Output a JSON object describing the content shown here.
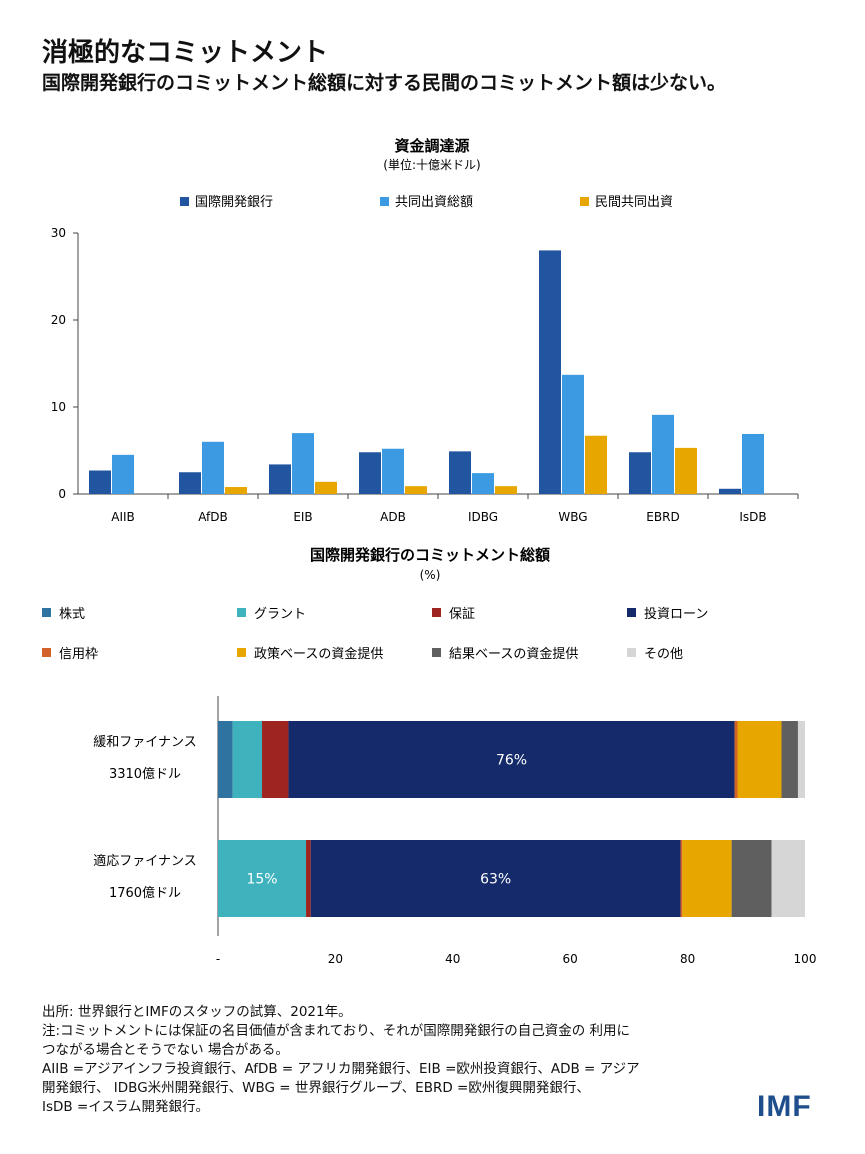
{
  "header": {
    "title": "消極的なコミットメント",
    "subtitle": "国際開発銀行のコミットメント総額に対する民間のコミットメント額は少ない。"
  },
  "colors": {
    "mdb": "#2155a0",
    "cofinance": "#3b9ae1",
    "private": "#e8a700",
    "equity": "#2f73a0",
    "grant": "#3eb3be",
    "guarantee": "#9e2420",
    "loan": "#152a6a",
    "credit_line": "#d2622a",
    "policy": "#e8a700",
    "results": "#5f5f5f",
    "other": "#d6d6d6"
  },
  "chart_data": [
    {
      "type": "bar",
      "title": "資金調達源",
      "subtitle": "(単位:十億米ドル)",
      "categories": [
        "AIIB",
        "AfDB",
        "EIB",
        "ADB",
        "IDBG",
        "WBG",
        "EBRD",
        "IsDB"
      ],
      "series": [
        {
          "name": "国際開発銀行",
          "color_key": "mdb",
          "values": [
            2.7,
            2.5,
            3.4,
            4.8,
            4.9,
            28.0,
            4.8,
            0.6
          ]
        },
        {
          "name": "共同出資総額",
          "color_key": "cofinance",
          "values": [
            4.5,
            6.0,
            7.0,
            5.2,
            2.4,
            13.7,
            9.1,
            6.9
          ]
        },
        {
          "name": "民間共同出資",
          "color_key": "private",
          "values": [
            0.0,
            0.8,
            1.4,
            0.9,
            0.9,
            6.7,
            5.3,
            0.0
          ]
        }
      ],
      "ylim": [
        0,
        30
      ],
      "yticks": [
        0,
        10,
        20,
        30
      ],
      "ytick_labels": [
        "0",
        "10",
        "20",
        "30"
      ],
      "xlabel": "",
      "ylabel": "",
      "legend_position": "top"
    },
    {
      "type": "bar",
      "orientation": "horizontal-stacked",
      "title": "国際開発銀行のコミットメント総額",
      "subtitle": "(%)",
      "legend": [
        {
          "name": "株式",
          "color_key": "equity"
        },
        {
          "name": "グラント",
          "color_key": "grant"
        },
        {
          "name": "保証",
          "color_key": "guarantee"
        },
        {
          "name": "投資ローン",
          "color_key": "loan"
        },
        {
          "name": "信用枠",
          "color_key": "credit_line"
        },
        {
          "name": "政策ベースの資金提供",
          "color_key": "policy"
        },
        {
          "name": "結果ベースの資金提供",
          "color_key": "results"
        },
        {
          "name": "その他",
          "color_key": "other"
        }
      ],
      "rows": [
        {
          "label": "緩和ファイナンス",
          "sublabel": "3310億ドル",
          "segments": [
            {
              "name": "株式",
              "color_key": "equity",
              "value": 2.5,
              "label": ""
            },
            {
              "name": "グラント",
              "color_key": "grant",
              "value": 5.0,
              "label": ""
            },
            {
              "name": "保証",
              "color_key": "guarantee",
              "value": 4.5,
              "label": ""
            },
            {
              "name": "投資ローン",
              "color_key": "loan",
              "value": 76.0,
              "label": "76%"
            },
            {
              "name": "信用枠",
              "color_key": "credit_line",
              "value": 0.5,
              "label": ""
            },
            {
              "name": "政策ベースの資金提供",
              "color_key": "policy",
              "value": 7.5,
              "label": ""
            },
            {
              "name": "結果ベースの資金提供",
              "color_key": "results",
              "value": 2.8,
              "label": ""
            },
            {
              "name": "その他",
              "color_key": "other",
              "value": 1.2,
              "label": ""
            }
          ]
        },
        {
          "label": "適応ファイナンス",
          "sublabel": "1760億ドル",
          "segments": [
            {
              "name": "株式",
              "color_key": "equity",
              "value": 0.0,
              "label": ""
            },
            {
              "name": "グラント",
              "color_key": "grant",
              "value": 15.0,
              "label": "15%"
            },
            {
              "name": "保証",
              "color_key": "guarantee",
              "value": 0.8,
              "label": ""
            },
            {
              "name": "投資ローン",
              "color_key": "loan",
              "value": 63.0,
              "label": "63%"
            },
            {
              "name": "信用枠",
              "color_key": "credit_line",
              "value": 0.3,
              "label": ""
            },
            {
              "name": "政策ベースの資金提供",
              "color_key": "policy",
              "value": 8.4,
              "label": ""
            },
            {
              "name": "結果ベースの資金提供",
              "color_key": "results",
              "value": 6.8,
              "label": ""
            },
            {
              "name": "その他",
              "color_key": "other",
              "value": 5.7,
              "label": ""
            }
          ]
        }
      ],
      "xlim": [
        0,
        100
      ],
      "xticks": [
        0,
        20,
        40,
        60,
        80,
        100
      ],
      "xtick_labels": [
        "-",
        "20",
        "40",
        "60",
        "80",
        "100"
      ]
    }
  ],
  "footnote": {
    "lines": [
      "出所: 世界銀行とIMFのスタッフの試算、2021年。",
      "注:コミットメントには保証の名目価値が含まれており、それが国際開発銀行の自己資金の 利用に",
      "つながる場合とそうでない 場合がある。",
      "AIIB =アジアインフラ投資銀行、AfDB = アフリカ開発銀行、EIB =欧州投資銀行、ADB = アジア",
      "開発銀行、 IDBG米州開発銀行、WBG = 世界銀行グループ、EBRD =欧州復興開発銀行、",
      "IsDB =イスラム開発銀行。"
    ]
  },
  "logo": "IMF"
}
